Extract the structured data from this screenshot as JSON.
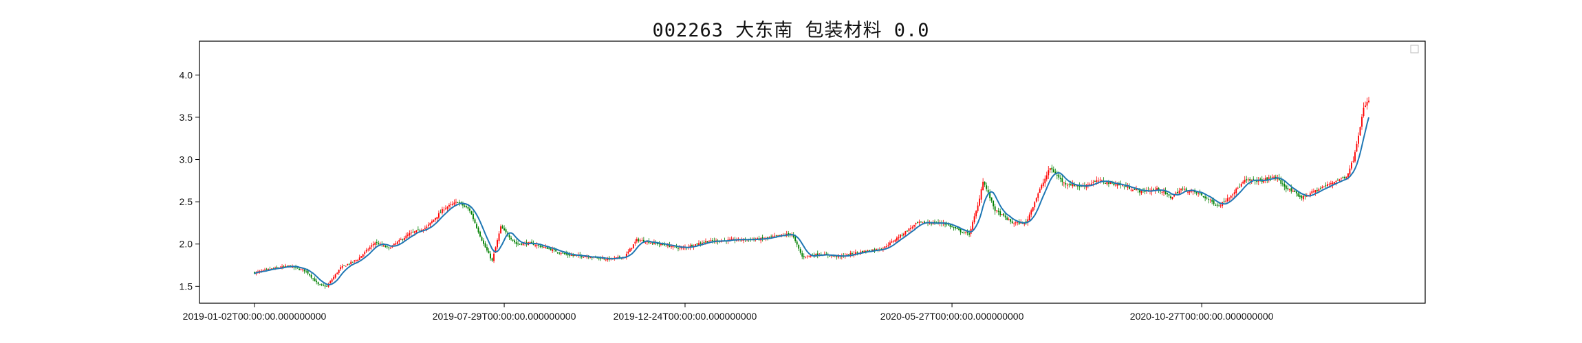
{
  "chart_data": {
    "type": "candlestick",
    "title": "002263 大东南 包装材料 0.0",
    "xlabel": "",
    "ylabel": "",
    "ylim": [
      1.3,
      4.4
    ],
    "y_ticks": [
      1.5,
      2.0,
      2.5,
      3.0,
      3.5,
      4.0
    ],
    "x_ticks": [
      "2019-01-02T00:00:00.000000000",
      "2019-07-29T00:00:00.000000000",
      "2019-12-24T00:00:00.000000000",
      "2020-05-27T00:00:00.000000000",
      "2020-10-27T00:00:00.000000000"
    ],
    "grid": false,
    "legend": "top-right (empty box)",
    "colors": {
      "up": "#ff0000",
      "down": "#008000",
      "ma_line": "#1f77b4"
    },
    "series": [
      {
        "kind": "close_price",
        "description_points": [
          [
            0,
            1.66
          ],
          [
            8,
            1.7
          ],
          [
            20,
            1.74
          ],
          [
            30,
            1.68
          ],
          [
            37,
            1.52
          ],
          [
            42,
            1.5
          ],
          [
            50,
            1.72
          ],
          [
            60,
            1.82
          ],
          [
            70,
            2.02
          ],
          [
            78,
            1.95
          ],
          [
            90,
            2.12
          ],
          [
            100,
            2.2
          ],
          [
            110,
            2.42
          ],
          [
            118,
            2.5
          ],
          [
            125,
            2.4
          ],
          [
            133,
            2.0
          ],
          [
            138,
            1.8
          ],
          [
            143,
            2.2
          ],
          [
            152,
            2.0
          ],
          [
            160,
            2.01
          ],
          [
            170,
            1.95
          ],
          [
            182,
            1.87
          ],
          [
            195,
            1.85
          ],
          [
            205,
            1.82
          ],
          [
            215,
            1.85
          ],
          [
            222,
            2.05
          ],
          [
            235,
            2.0
          ],
          [
            248,
            1.95
          ],
          [
            262,
            2.03
          ],
          [
            280,
            2.05
          ],
          [
            295,
            2.06
          ],
          [
            305,
            2.1
          ],
          [
            312,
            2.12
          ],
          [
            318,
            1.85
          ],
          [
            328,
            1.88
          ],
          [
            340,
            1.85
          ],
          [
            350,
            1.9
          ],
          [
            365,
            1.95
          ],
          [
            375,
            2.1
          ],
          [
            385,
            2.25
          ],
          [
            400,
            2.25
          ],
          [
            410,
            2.15
          ],
          [
            415,
            2.12
          ],
          [
            420,
            2.45
          ],
          [
            423,
            2.75
          ],
          [
            430,
            2.4
          ],
          [
            440,
            2.25
          ],
          [
            448,
            2.25
          ],
          [
            455,
            2.6
          ],
          [
            462,
            2.9
          ],
          [
            470,
            2.72
          ],
          [
            480,
            2.68
          ],
          [
            490,
            2.75
          ],
          [
            502,
            2.7
          ],
          [
            515,
            2.62
          ],
          [
            525,
            2.65
          ],
          [
            532,
            2.55
          ],
          [
            538,
            2.65
          ],
          [
            548,
            2.6
          ],
          [
            560,
            2.45
          ],
          [
            568,
            2.6
          ],
          [
            575,
            2.75
          ],
          [
            585,
            2.75
          ],
          [
            592,
            2.8
          ],
          [
            600,
            2.65
          ],
          [
            608,
            2.55
          ],
          [
            618,
            2.65
          ],
          [
            628,
            2.75
          ],
          [
            634,
            2.8
          ],
          [
            638,
            3.0
          ],
          [
            641,
            3.3
          ],
          [
            644,
            3.6
          ],
          [
            647,
            3.7
          ]
        ]
      },
      {
        "kind": "moving_average",
        "name": ""
      }
    ],
    "trading_days": 648,
    "x_tick_indices": [
      0,
      145,
      250,
      405,
      550
    ]
  }
}
